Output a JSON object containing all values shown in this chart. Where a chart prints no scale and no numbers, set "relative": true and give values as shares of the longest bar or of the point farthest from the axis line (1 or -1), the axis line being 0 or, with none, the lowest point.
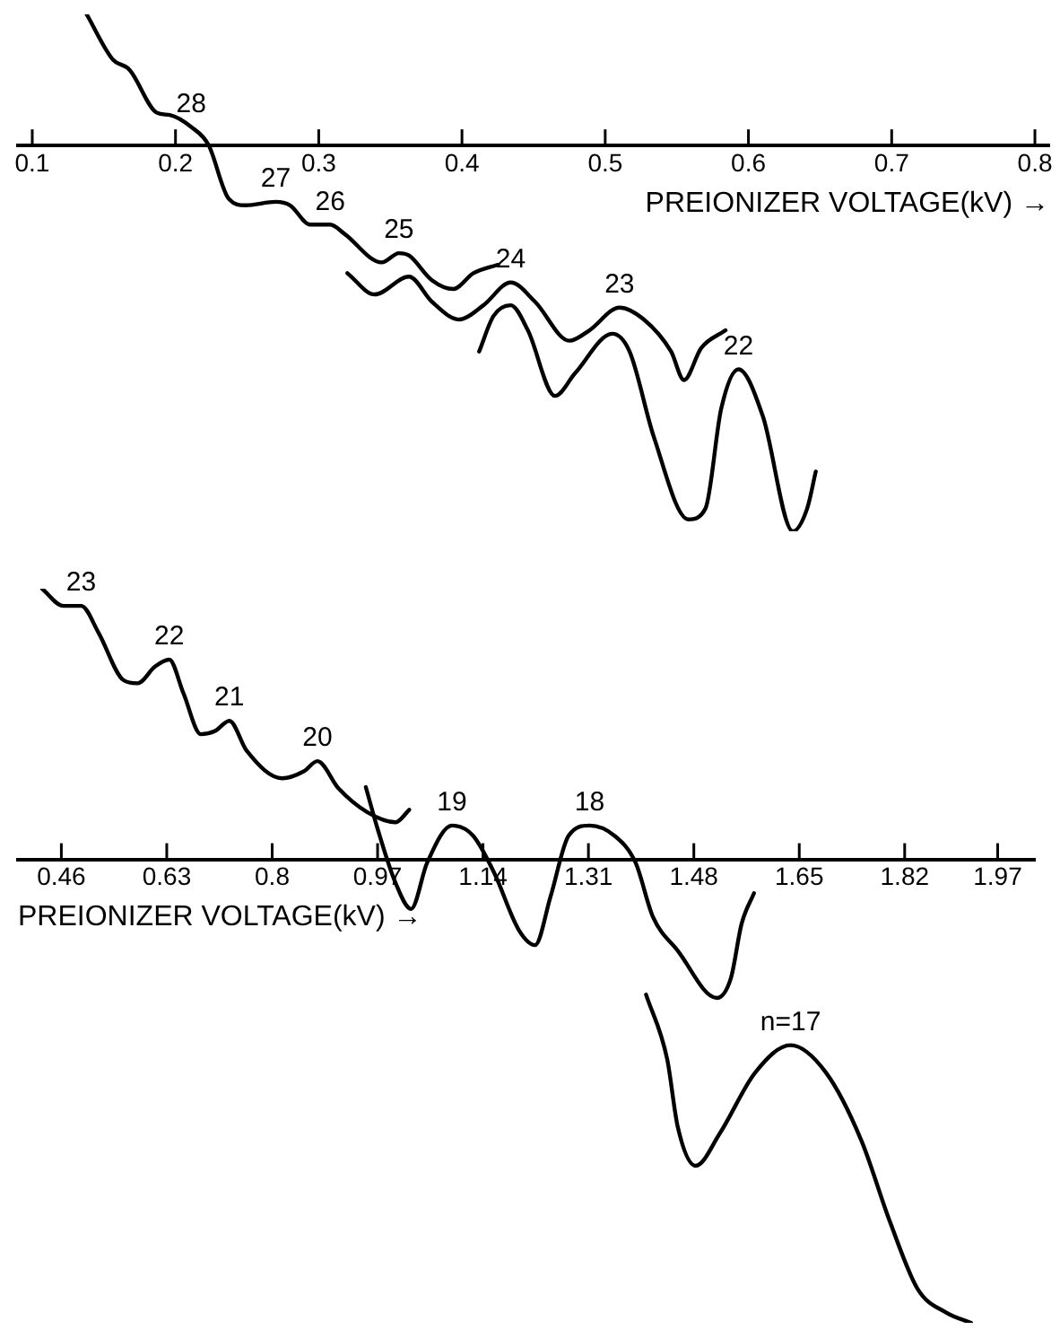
{
  "chart_data": [
    {
      "type": "line",
      "relative": true,
      "marker": "none",
      "xlabel": "PREIONIZER VOLTAGE(kV) →",
      "xlim": [
        0.09,
        0.81
      ],
      "xticks": [
        0.1,
        0.2,
        0.3,
        0.4,
        0.5,
        0.6,
        0.7,
        0.8
      ],
      "series": [
        {
          "color": "#000000",
          "x": [
            0.138,
            0.156,
            0.168,
            0.187,
            0.196,
            0.211,
            0.223,
            0.237,
            0.249,
            0.27,
            0.28,
            0.294,
            0.308,
            0.318,
            0.344,
            0.356,
            0.363,
            0.379,
            0.394,
            0.408,
            0.425
          ],
          "values": [
            0.34,
            0.224,
            0.196,
            0.085,
            0.079,
            0.048,
            0.002,
            -0.137,
            -0.155,
            -0.146,
            -0.155,
            -0.205,
            -0.205,
            -0.229,
            -0.303,
            -0.279,
            -0.285,
            -0.349,
            -0.372,
            -0.331,
            -0.309
          ]
        },
        {
          "color": "#000000",
          "x": [
            0.32,
            0.339,
            0.363,
            0.379,
            0.398,
            0.415,
            0.434,
            0.451,
            0.475,
            0.489,
            0.51,
            0.527,
            0.546,
            0.555,
            0.567,
            0.584
          ],
          "values": [
            -0.331,
            -0.386,
            -0.34,
            -0.405,
            -0.451,
            -0.414,
            -0.355,
            -0.405,
            -0.506,
            -0.479,
            -0.42,
            -0.451,
            -0.534,
            -0.608,
            -0.525,
            -0.479
          ]
        },
        {
          "color": "#000000",
          "x": [
            0.412,
            0.422,
            0.434,
            0.446,
            0.465,
            0.479,
            0.505,
            0.517,
            0.534,
            0.558,
            0.57,
            0.581,
            0.593,
            0.61,
            0.631,
            0.641,
            0.647
          ],
          "values": [
            -0.534,
            -0.442,
            -0.414,
            -0.479,
            -0.649,
            -0.59,
            -0.488,
            -0.534,
            -0.756,
            -0.969,
            -0.941,
            -0.682,
            -0.58,
            -0.701,
            -1.0,
            -0.941,
            -0.845
          ]
        }
      ],
      "annotations": [
        {
          "text": "28",
          "x": 0.211,
          "y": 0.048
        },
        {
          "text": "27",
          "x": 0.27,
          "y": -0.146
        },
        {
          "text": "26",
          "x": 0.308,
          "y": -0.205
        },
        {
          "text": "25",
          "x": 0.356,
          "y": -0.279
        },
        {
          "text": "24",
          "x": 0.434,
          "y": -0.355
        },
        {
          "text": "23",
          "x": 0.51,
          "y": -0.42
        },
        {
          "text": "22",
          "x": 0.593,
          "y": -0.58
        }
      ]
    },
    {
      "type": "line",
      "relative": true,
      "marker": "none",
      "xlabel": "PREIONIZER VOLTAGE(kV) →",
      "xlim": [
        0.39,
        2.03
      ],
      "xticks": [
        0.46,
        0.63,
        0.8,
        0.97,
        1.14,
        1.31,
        1.48,
        1.65,
        1.82,
        1.97
      ],
      "series": [
        {
          "color": "#000000",
          "x": [
            0.429,
            0.463,
            0.492,
            0.52,
            0.56,
            0.583,
            0.611,
            0.634,
            0.657,
            0.685,
            0.708,
            0.731,
            0.759,
            0.816,
            0.851,
            0.873,
            0.907,
            0.953,
            0.999,
            1.021
          ],
          "values": [
            0.584,
            0.547,
            0.547,
            0.489,
            0.387,
            0.38,
            0.416,
            0.431,
            0.358,
            0.27,
            0.277,
            0.299,
            0.234,
            0.175,
            0.19,
            0.212,
            0.153,
            0.102,
            0.08,
            0.107
          ]
        },
        {
          "color": "#000000",
          "x": [
            0.951,
            0.97,
            0.999,
            1.024,
            1.05,
            1.09,
            1.124,
            1.158,
            1.198,
            1.224,
            1.249,
            1.278,
            1.312,
            1.352,
            1.386,
            1.414,
            1.454,
            1.517,
            1.54,
            1.557,
            1.577
          ],
          "values": [
            0.156,
            0.066,
            -0.051,
            -0.107,
            -0.007,
            0.073,
            0.051,
            -0.029,
            -0.153,
            -0.185,
            -0.08,
            0.051,
            0.073,
            0.051,
            -0.007,
            -0.124,
            -0.197,
            -0.299,
            -0.255,
            -0.139,
            -0.073
          ]
        },
        {
          "color": "#000000",
          "x": [
            1.403,
            1.437,
            1.454,
            1.483,
            1.522,
            1.579,
            1.636,
            1.693,
            1.75,
            1.796,
            1.841,
            1.887,
            1.927
          ],
          "values": [
            -0.292,
            -0.431,
            -0.577,
            -0.661,
            -0.591,
            -0.46,
            -0.401,
            -0.46,
            -0.606,
            -0.781,
            -0.927,
            -0.978,
            -1.0
          ]
        }
      ],
      "annotations": [
        {
          "text": "23",
          "x": 0.492,
          "y": 0.547
        },
        {
          "text": "22",
          "x": 0.634,
          "y": 0.431
        },
        {
          "text": "21",
          "x": 0.731,
          "y": 0.299
        },
        {
          "text": "20",
          "x": 0.873,
          "y": 0.212
        },
        {
          "text": "19",
          "x": 1.09,
          "y": 0.073
        },
        {
          "text": "18",
          "x": 1.312,
          "y": 0.073
        },
        {
          "text": "n=17",
          "x": 1.636,
          "y": -0.401
        }
      ]
    }
  ]
}
